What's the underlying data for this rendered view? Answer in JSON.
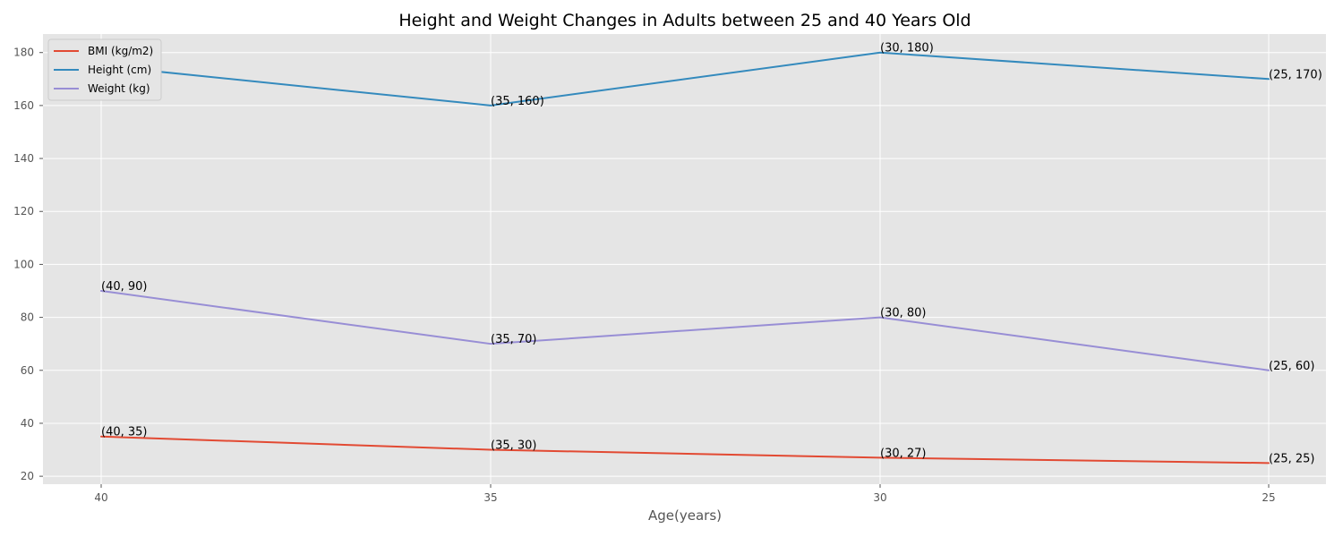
{
  "chart_data": {
    "type": "line",
    "title": "Height and Weight Changes in Adults between 25 and 40 Years Old",
    "xlabel": "Age(years)",
    "ylabel": "",
    "categories": [
      "40",
      "35",
      "30",
      "25"
    ],
    "ylim": [
      17,
      187
    ],
    "yticks": [
      20,
      40,
      60,
      80,
      100,
      120,
      140,
      160,
      180
    ],
    "grid": true,
    "legend_position": "top-left",
    "series": [
      {
        "name": "BMI (kg/m2)",
        "color": "#e24a33",
        "values": [
          35,
          30,
          27,
          25
        ],
        "labels": [
          "(40, 35)",
          "(35, 30)",
          "(30, 27)",
          "(25, 25)"
        ]
      },
      {
        "name": "Height (cm)",
        "color": "#348abd",
        "values": [
          175,
          160,
          180,
          170
        ],
        "labels": [
          "(40, 175)",
          "(35, 160)",
          "(30, 180)",
          "(25, 170)"
        ]
      },
      {
        "name": "Weight (kg)",
        "color": "#988ed5",
        "values": [
          90,
          70,
          80,
          60
        ],
        "labels": [
          "(40, 90)",
          "(35, 70)",
          "(30, 80)",
          "(25, 60)"
        ]
      }
    ]
  }
}
